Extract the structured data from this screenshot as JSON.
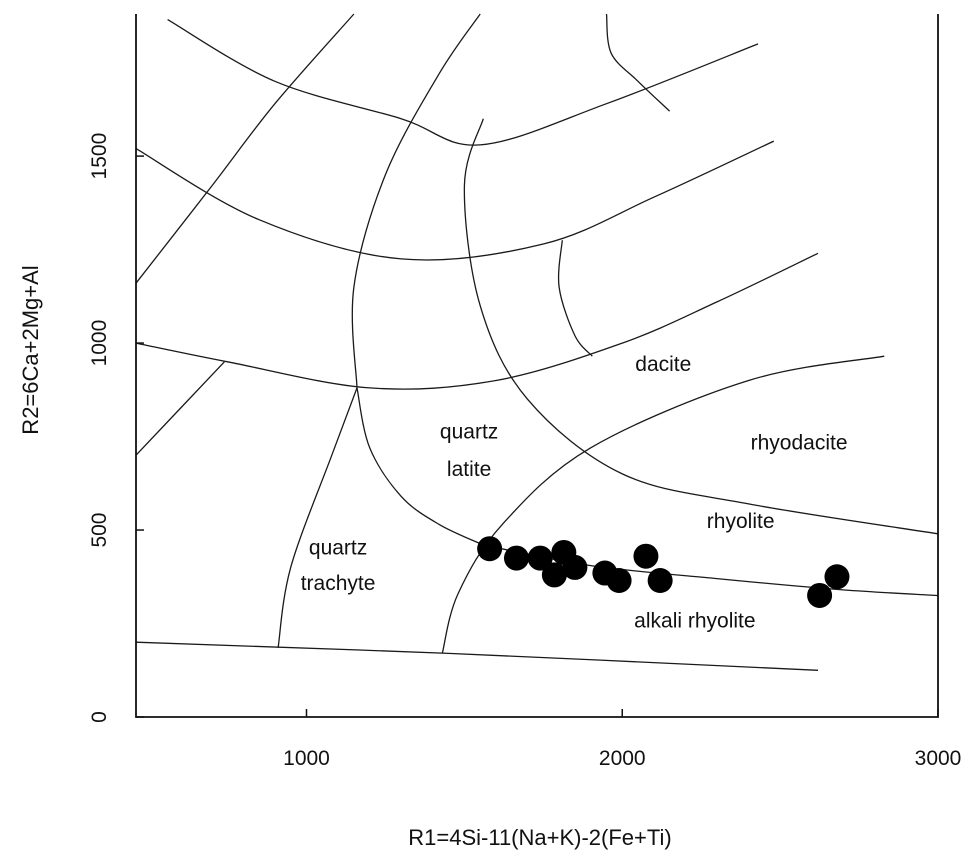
{
  "chart_data": {
    "type": "scatter",
    "title": "",
    "xlabel": "R1=4Si-11(Na+K)-2(Fe+Ti)",
    "ylabel": "R2=6Ca+2Mg+Al",
    "xlim": [
      460,
      3000
    ],
    "ylim": [
      0,
      1880
    ],
    "x_ticks": [
      1000,
      2000,
      3000
    ],
    "y_ticks": [
      0,
      500,
      1000,
      1500
    ],
    "grid": false,
    "legend": "none",
    "marker_color": "#000000",
    "series": [
      {
        "x": [
          1580,
          1665,
          1740,
          1815,
          1785,
          1850,
          1945,
          1990,
          2075,
          2120,
          2625,
          2680
        ],
        "y": [
          450,
          425,
          425,
          440,
          380,
          400,
          385,
          365,
          430,
          365,
          325,
          375
        ]
      }
    ],
    "region_labels": [
      {
        "text": "dacite",
        "x": 2130,
        "y": 925
      },
      {
        "text": "quartz",
        "x": 1515,
        "y": 745
      },
      {
        "text": "latite",
        "x": 1515,
        "y": 645
      },
      {
        "text": "rhyodacite",
        "x": 2560,
        "y": 715
      },
      {
        "text": "rhyolite",
        "x": 2375,
        "y": 505
      },
      {
        "text": "quartz",
        "x": 1100,
        "y": 435
      },
      {
        "text": "trachyte",
        "x": 1100,
        "y": 340
      },
      {
        "text": "alkali rhyolite",
        "x": 2230,
        "y": 240
      }
    ],
    "boundaries": [
      [
        [
          460,
          200
        ],
        [
          1450,
          170
        ],
        [
          2620,
          125
        ]
      ],
      [
        [
          460,
          1000
        ],
        [
          750,
          950
        ],
        [
          1200,
          880
        ],
        [
          1600,
          900
        ],
        [
          2000,
          1000
        ],
        [
          2300,
          1110
        ],
        [
          2620,
          1240
        ]
      ],
      [
        [
          460,
          1520
        ],
        [
          850,
          1330
        ],
        [
          1300,
          1225
        ],
        [
          1750,
          1265
        ],
        [
          2100,
          1390
        ],
        [
          2480,
          1540
        ]
      ],
      [
        [
          560,
          1865
        ],
        [
          900,
          1700
        ],
        [
          1300,
          1600
        ],
        [
          1550,
          1530
        ],
        [
          1950,
          1640
        ],
        [
          2430,
          1800
        ]
      ],
      [
        [
          1950,
          1880
        ],
        [
          1965,
          1775
        ],
        [
          2050,
          1700
        ],
        [
          2150,
          1620
        ]
      ],
      [
        [
          1810,
          1275
        ],
        [
          1800,
          1150
        ],
        [
          1850,
          1020
        ],
        [
          1905,
          965
        ]
      ],
      [
        [
          460,
          1160
        ],
        [
          700,
          1420
        ],
        [
          900,
          1640
        ],
        [
          1150,
          1880
        ]
      ],
      [
        [
          460,
          700
        ],
        [
          740,
          950
        ]
      ],
      [
        [
          910,
          185
        ],
        [
          950,
          400
        ],
        [
          1080,
          700
        ],
        [
          1160,
          880
        ]
      ],
      [
        [
          1160,
          880
        ],
        [
          1200,
          720
        ],
        [
          1300,
          590
        ],
        [
          1420,
          515
        ],
        [
          1560,
          460
        ]
      ],
      [
        [
          1160,
          880
        ],
        [
          1150,
          1150
        ],
        [
          1250,
          1450
        ],
        [
          1420,
          1720
        ],
        [
          1550,
          1880
        ]
      ],
      [
        [
          1430,
          170
        ],
        [
          1480,
          330
        ],
        [
          1620,
          515
        ],
        [
          1900,
          720
        ],
        [
          2400,
          900
        ],
        [
          2830,
          965
        ]
      ],
      [
        [
          1560,
          460
        ],
        [
          1900,
          405
        ],
        [
          2300,
          370
        ],
        [
          2700,
          340
        ],
        [
          3000,
          325
        ]
      ],
      [
        [
          1560,
          1600
        ],
        [
          1500,
          1420
        ],
        [
          1550,
          1100
        ],
        [
          1700,
          850
        ],
        [
          2000,
          650
        ],
        [
          2400,
          570
        ],
        [
          3000,
          490
        ]
      ]
    ]
  }
}
